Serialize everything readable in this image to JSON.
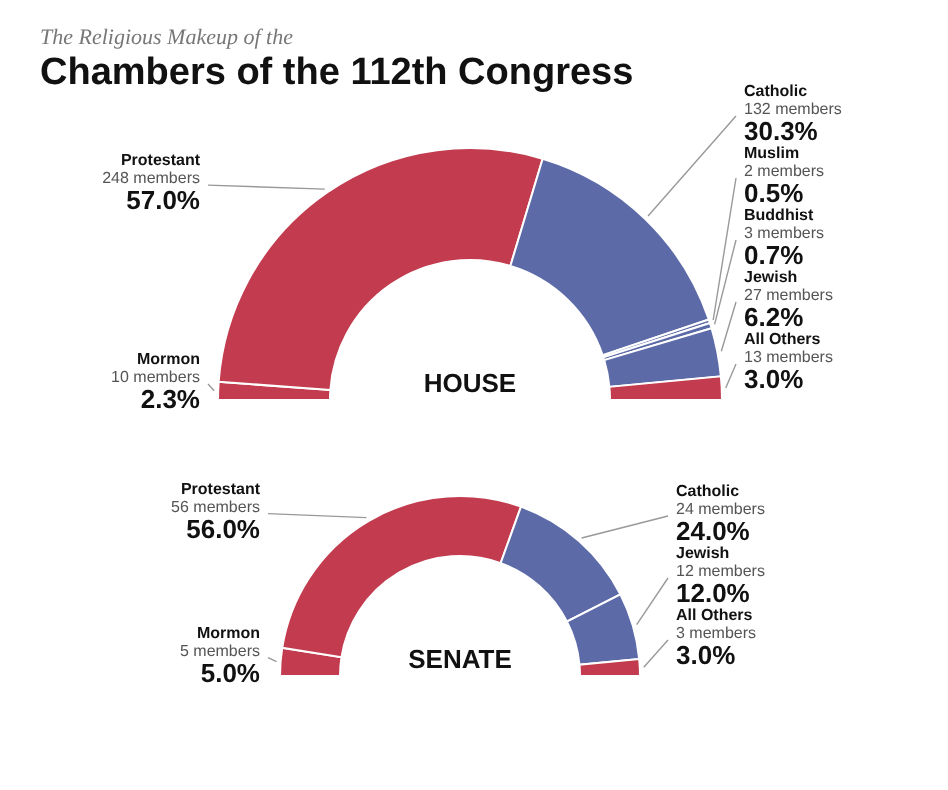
{
  "chart_data": [
    {
      "type": "donut",
      "subtitle": "The Religious Makeup of the",
      "title": "Chambers of the 112th Congress",
      "annotations": [
        "HOUSE"
      ],
      "categories": [
        "Mormon",
        "Protestant",
        "Catholic",
        "Muslim",
        "Buddhist",
        "Jewish",
        "All Others"
      ],
      "values": [
        10,
        248,
        132,
        2,
        3,
        27,
        13
      ],
      "value_labels": [
        "10 members\n2.3%",
        "248 members\n57.0%",
        "132 members\n30.3%",
        "2 members\n0.5%",
        "3 members\n0.7%",
        "27 members\n6.2%",
        "13 members\n3.0%"
      ],
      "colors": [
        "#c23b4e",
        "#c23b4e",
        "#5d6aa8",
        "#5d6aa8",
        "#5d6aa8",
        "#5d6aa8",
        "#c23b4e"
      ]
    },
    {
      "type": "donut",
      "annotations": [
        "SENATE"
      ],
      "categories": [
        "Mormon",
        "Protestant",
        "Catholic",
        "Jewish",
        "All Others"
      ],
      "values": [
        5,
        56,
        24,
        12,
        3
      ],
      "value_labels": [
        "5 members\n5.0%",
        "56 members\n56.0%",
        "24 members\n24.0%",
        "12 members\n12.0%",
        "3 members\n3.0%"
      ],
      "colors": [
        "#c23b4e",
        "#c23b4e",
        "#5d6aa8",
        "#5d6aa8",
        "#c23b4e"
      ]
    }
  ]
}
